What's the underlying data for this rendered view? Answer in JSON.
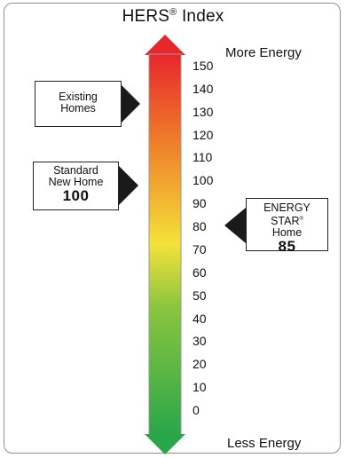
{
  "title": "HERS",
  "title_mark": "®",
  "title_suffix": " Index",
  "top_label": "More Energy",
  "bottom_label": "Less Energy",
  "scale": {
    "ticks": [
      "150",
      "140",
      "130",
      "120",
      "110",
      "100",
      "90",
      "80",
      "70",
      "60",
      "50",
      "40",
      "30",
      "20",
      "10",
      "0"
    ],
    "max": 150,
    "min": 0
  },
  "markers": {
    "existing": {
      "line1": "Existing",
      "line2": "Homes",
      "value": 140
    },
    "standard": {
      "line1": "Standard",
      "line2": "New Home",
      "score": "100",
      "value": 100
    },
    "energy_star": {
      "line1": "ENERGY STAR",
      "line1_mark": "®",
      "line2": "Home",
      "score": "85",
      "value": 85
    }
  },
  "colors": {
    "top": "#e8262c",
    "upper": "#ee7a2a",
    "middle": "#f4e23a",
    "lower": "#8cc63f",
    "bottom": "#2aa64a"
  }
}
